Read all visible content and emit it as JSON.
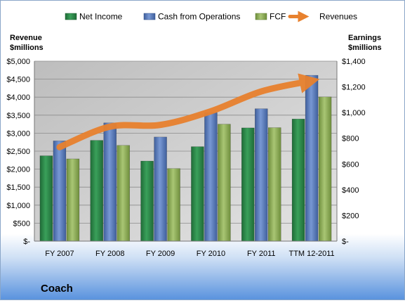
{
  "colors": {
    "net_income": "#2e8b4a",
    "cash_from_operations": "#5a7fc0",
    "fcf": "#8fb05a",
    "revenues": "#e8812e",
    "plot_background": "#cfcfcf"
  },
  "chart_data": {
    "type": "bar",
    "title": "Coach",
    "categories": [
      "FY 2007",
      "FY 2008",
      "FY 2009",
      "FY 2010",
      "FY 2011",
      "TTM 12-2011"
    ],
    "y_left_label_line1": "Revenue",
    "y_left_label_line2": "$millions",
    "y_right_label_line1": "Earnings",
    "y_right_label_line2": "$millions",
    "y_left_ticks": [
      "$-",
      "$500",
      "$1,000",
      "$1,500",
      "$2,000",
      "$2,500",
      "$3,000",
      "$3,500",
      "$4,000",
      "$4,500",
      "$5,000"
    ],
    "y_right_ticks": [
      "$-",
      "$200",
      "$400",
      "$600",
      "$800",
      "$1,000",
      "$1,200",
      "$1,400"
    ],
    "y_left_lim": [
      0,
      5000
    ],
    "y_right_lim": [
      0,
      1400
    ],
    "grid": true,
    "legend_position": "top",
    "series": [
      {
        "name": "Net Income",
        "axis": "right",
        "values": [
          664,
          784,
          623,
          735,
          881,
          950
        ]
      },
      {
        "name": "Cash from Operations",
        "axis": "right",
        "values": [
          780,
          920,
          810,
          1000,
          1030,
          1290
        ]
      },
      {
        "name": "FCF",
        "axis": "right",
        "values": [
          640,
          745,
          565,
          910,
          883,
          1122
        ]
      },
      {
        "name": "Revenues",
        "axis": "left",
        "type": "line",
        "values": [
          2612,
          3181,
          3230,
          3608,
          4159,
          4455
        ]
      }
    ]
  }
}
